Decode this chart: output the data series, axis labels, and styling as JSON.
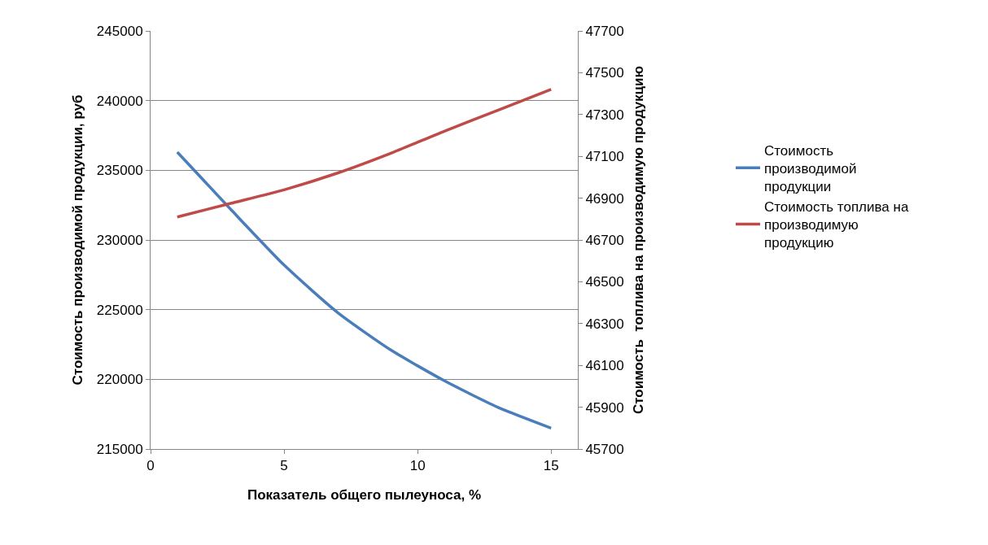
{
  "chart_data": {
    "type": "line",
    "xlabel": "Показатель общего пылеуноса, %",
    "ylabel": "Стоимость производимой продукции, руб",
    "y2label": "Стоимость  топлива на производимую продукцию",
    "x": [
      1,
      3,
      5,
      7,
      9,
      11,
      13,
      15
    ],
    "series": [
      {
        "name": "Стоимость производимой продукции",
        "color": "#4a7ebb",
        "values": [
          236300,
          232200,
          228200,
          224800,
          222100,
          219900,
          218000,
          216500
        ]
      },
      {
        "name": "Стоимость топлива на производимую продукцию",
        "color": "#be4b48",
        "axis": "y2",
        "values": [
          46810,
          46875,
          46940,
          47020,
          47115,
          47220,
          47320,
          47420
        ]
      }
    ],
    "xlim": [
      0,
      16
    ],
    "xticks": [
      0,
      5,
      10,
      15
    ],
    "ylim": [
      215000,
      245000
    ],
    "yticks": [
      215000,
      220000,
      225000,
      230000,
      235000,
      240000,
      245000
    ],
    "y2lim": [
      45700,
      47700
    ],
    "y2ticks": [
      45700,
      45900,
      46100,
      46300,
      46500,
      46700,
      46900,
      47100,
      47300,
      47500,
      47700
    ],
    "grid": "y",
    "legend": "right",
    "marker": "none",
    "line_style": "solid"
  }
}
